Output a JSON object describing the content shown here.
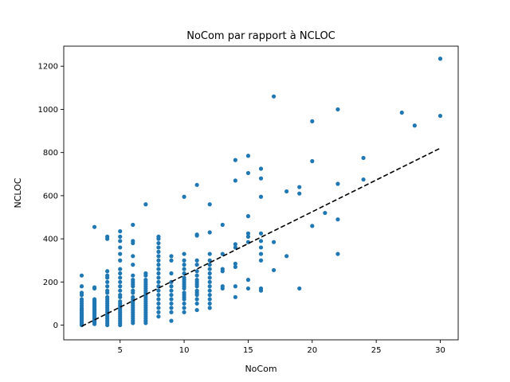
{
  "chart_data": {
    "type": "scatter",
    "title": "NoCom par rapport à NCLOC",
    "xlabel": "NoCom",
    "ylabel": "NCLOC",
    "xlim": [
      0.6,
      31.4
    ],
    "ylim": [
      -68,
      1293
    ],
    "xticks": [
      5,
      10,
      15,
      20,
      25,
      30
    ],
    "yticks": [
      0,
      200,
      400,
      600,
      800,
      1000,
      1200
    ],
    "grid": false,
    "legend": "none",
    "point_color": "#1f77b4",
    "trendline": {
      "style": "dashed",
      "color": "#000000",
      "x": [
        2,
        30
      ],
      "y": [
        -5,
        820
      ]
    },
    "points": [
      [
        2,
        0
      ],
      [
        2,
        5
      ],
      [
        2,
        10
      ],
      [
        2,
        15
      ],
      [
        2,
        20
      ],
      [
        2,
        25
      ],
      [
        2,
        30
      ],
      [
        2,
        35
      ],
      [
        2,
        40
      ],
      [
        2,
        45
      ],
      [
        2,
        50
      ],
      [
        2,
        55
      ],
      [
        2,
        60
      ],
      [
        2,
        65
      ],
      [
        2,
        70
      ],
      [
        2,
        75
      ],
      [
        2,
        80
      ],
      [
        2,
        90
      ],
      [
        2,
        100
      ],
      [
        2,
        110
      ],
      [
        2,
        120
      ],
      [
        2,
        140
      ],
      [
        2,
        150
      ],
      [
        2,
        180
      ],
      [
        2,
        230
      ],
      [
        3,
        5
      ],
      [
        3,
        10
      ],
      [
        3,
        15
      ],
      [
        3,
        20
      ],
      [
        3,
        25
      ],
      [
        3,
        30
      ],
      [
        3,
        35
      ],
      [
        3,
        40
      ],
      [
        3,
        45
      ],
      [
        3,
        50
      ],
      [
        3,
        55
      ],
      [
        3,
        60
      ],
      [
        3,
        65
      ],
      [
        3,
        70
      ],
      [
        3,
        75
      ],
      [
        3,
        80
      ],
      [
        3,
        85
      ],
      [
        3,
        90
      ],
      [
        3,
        95
      ],
      [
        3,
        100
      ],
      [
        3,
        105
      ],
      [
        3,
        110
      ],
      [
        3,
        115
      ],
      [
        3,
        120
      ],
      [
        3,
        170
      ],
      [
        3,
        175
      ],
      [
        3,
        455
      ],
      [
        4,
        0
      ],
      [
        4,
        10
      ],
      [
        4,
        20
      ],
      [
        4,
        30
      ],
      [
        4,
        40
      ],
      [
        4,
        50
      ],
      [
        4,
        60
      ],
      [
        4,
        70
      ],
      [
        4,
        80
      ],
      [
        4,
        90
      ],
      [
        4,
        100
      ],
      [
        4,
        110
      ],
      [
        4,
        120
      ],
      [
        4,
        130
      ],
      [
        4,
        150
      ],
      [
        4,
        160
      ],
      [
        4,
        180
      ],
      [
        4,
        200
      ],
      [
        4,
        220
      ],
      [
        4,
        230
      ],
      [
        4,
        250
      ],
      [
        4,
        400
      ],
      [
        4,
        410
      ],
      [
        5,
        0
      ],
      [
        5,
        10
      ],
      [
        5,
        20
      ],
      [
        5,
        30
      ],
      [
        5,
        40
      ],
      [
        5,
        50
      ],
      [
        5,
        60
      ],
      [
        5,
        70
      ],
      [
        5,
        80
      ],
      [
        5,
        90
      ],
      [
        5,
        100
      ],
      [
        5,
        110
      ],
      [
        5,
        130
      ],
      [
        5,
        140
      ],
      [
        5,
        160
      ],
      [
        5,
        180
      ],
      [
        5,
        200
      ],
      [
        5,
        220
      ],
      [
        5,
        240
      ],
      [
        5,
        260
      ],
      [
        5,
        300
      ],
      [
        5,
        330
      ],
      [
        5,
        360
      ],
      [
        5,
        390
      ],
      [
        5,
        410
      ],
      [
        5,
        435
      ],
      [
        6,
        10
      ],
      [
        6,
        20
      ],
      [
        6,
        30
      ],
      [
        6,
        40
      ],
      [
        6,
        50
      ],
      [
        6,
        60
      ],
      [
        6,
        70
      ],
      [
        6,
        80
      ],
      [
        6,
        90
      ],
      [
        6,
        100
      ],
      [
        6,
        110
      ],
      [
        6,
        120
      ],
      [
        6,
        130
      ],
      [
        6,
        150
      ],
      [
        6,
        160
      ],
      [
        6,
        180
      ],
      [
        6,
        190
      ],
      [
        6,
        200
      ],
      [
        6,
        210
      ],
      [
        6,
        230
      ],
      [
        6,
        280
      ],
      [
        6,
        320
      ],
      [
        6,
        380
      ],
      [
        6,
        390
      ],
      [
        6,
        465
      ],
      [
        7,
        10
      ],
      [
        7,
        20
      ],
      [
        7,
        30
      ],
      [
        7,
        40
      ],
      [
        7,
        50
      ],
      [
        7,
        60
      ],
      [
        7,
        70
      ],
      [
        7,
        80
      ],
      [
        7,
        90
      ],
      [
        7,
        100
      ],
      [
        7,
        110
      ],
      [
        7,
        120
      ],
      [
        7,
        130
      ],
      [
        7,
        140
      ],
      [
        7,
        150
      ],
      [
        7,
        160
      ],
      [
        7,
        170
      ],
      [
        7,
        180
      ],
      [
        7,
        190
      ],
      [
        7,
        200
      ],
      [
        7,
        210
      ],
      [
        7,
        230
      ],
      [
        7,
        240
      ],
      [
        7,
        560
      ],
      [
        8,
        40
      ],
      [
        8,
        60
      ],
      [
        8,
        80
      ],
      [
        8,
        100
      ],
      [
        8,
        120
      ],
      [
        8,
        140
      ],
      [
        8,
        160
      ],
      [
        8,
        180
      ],
      [
        8,
        200
      ],
      [
        8,
        220
      ],
      [
        8,
        240
      ],
      [
        8,
        260
      ],
      [
        8,
        280
      ],
      [
        8,
        300
      ],
      [
        8,
        320
      ],
      [
        8,
        340
      ],
      [
        8,
        360
      ],
      [
        8,
        380
      ],
      [
        8,
        400
      ],
      [
        8,
        410
      ],
      [
        9,
        20
      ],
      [
        9,
        60
      ],
      [
        9,
        80
      ],
      [
        9,
        100
      ],
      [
        9,
        120
      ],
      [
        9,
        140
      ],
      [
        9,
        160
      ],
      [
        9,
        180
      ],
      [
        9,
        200
      ],
      [
        9,
        240
      ],
      [
        9,
        300
      ],
      [
        9,
        320
      ],
      [
        10,
        60
      ],
      [
        10,
        80
      ],
      [
        10,
        100
      ],
      [
        10,
        120
      ],
      [
        10,
        130
      ],
      [
        10,
        140
      ],
      [
        10,
        150
      ],
      [
        10,
        170
      ],
      [
        10,
        180
      ],
      [
        10,
        190
      ],
      [
        10,
        200
      ],
      [
        10,
        210
      ],
      [
        10,
        220
      ],
      [
        10,
        240
      ],
      [
        10,
        260
      ],
      [
        10,
        280
      ],
      [
        10,
        300
      ],
      [
        10,
        330
      ],
      [
        10,
        595
      ],
      [
        11,
        70
      ],
      [
        11,
        100
      ],
      [
        11,
        120
      ],
      [
        11,
        140
      ],
      [
        11,
        150
      ],
      [
        11,
        160
      ],
      [
        11,
        180
      ],
      [
        11,
        190
      ],
      [
        11,
        200
      ],
      [
        11,
        210
      ],
      [
        11,
        230
      ],
      [
        11,
        250
      ],
      [
        11,
        280
      ],
      [
        11,
        300
      ],
      [
        11,
        415
      ],
      [
        11,
        420
      ],
      [
        11,
        650
      ],
      [
        12,
        80
      ],
      [
        12,
        100
      ],
      [
        12,
        120
      ],
      [
        12,
        140
      ],
      [
        12,
        160
      ],
      [
        12,
        180
      ],
      [
        12,
        200
      ],
      [
        12,
        220
      ],
      [
        12,
        240
      ],
      [
        12,
        260
      ],
      [
        12,
        280
      ],
      [
        12,
        300
      ],
      [
        12,
        330
      ],
      [
        12,
        430
      ],
      [
        12,
        560
      ],
      [
        13,
        170
      ],
      [
        13,
        180
      ],
      [
        13,
        250
      ],
      [
        13,
        260
      ],
      [
        13,
        330
      ],
      [
        13,
        465
      ],
      [
        14,
        130
      ],
      [
        14,
        180
      ],
      [
        14,
        270
      ],
      [
        14,
        285
      ],
      [
        14,
        360
      ],
      [
        14,
        375
      ],
      [
        14,
        670
      ],
      [
        14,
        765
      ],
      [
        15,
        170
      ],
      [
        15,
        210
      ],
      [
        15,
        385
      ],
      [
        15,
        410
      ],
      [
        15,
        425
      ],
      [
        15,
        505
      ],
      [
        15,
        705
      ],
      [
        15,
        785
      ],
      [
        16,
        160
      ],
      [
        16,
        170
      ],
      [
        16,
        300
      ],
      [
        16,
        330
      ],
      [
        16,
        360
      ],
      [
        16,
        390
      ],
      [
        16,
        425
      ],
      [
        16,
        595
      ],
      [
        16,
        680
      ],
      [
        16,
        725
      ],
      [
        17,
        255
      ],
      [
        17,
        385
      ],
      [
        17,
        1060
      ],
      [
        18,
        320
      ],
      [
        18,
        620
      ],
      [
        19,
        170
      ],
      [
        19,
        610
      ],
      [
        19,
        640
      ],
      [
        20,
        460
      ],
      [
        20,
        760
      ],
      [
        20,
        945
      ],
      [
        21,
        520
      ],
      [
        22,
        330
      ],
      [
        22,
        490
      ],
      [
        22,
        655
      ],
      [
        22,
        1000
      ],
      [
        24,
        675
      ],
      [
        24,
        775
      ],
      [
        27,
        985
      ],
      [
        28,
        925
      ],
      [
        30,
        970
      ],
      [
        30,
        1235
      ]
    ]
  }
}
